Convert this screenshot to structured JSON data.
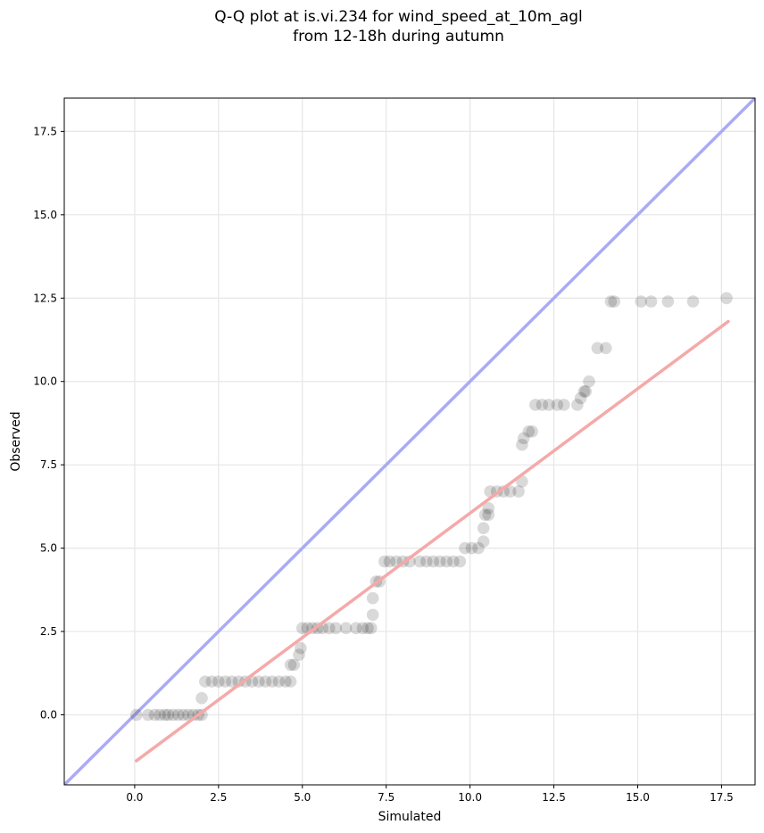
{
  "chart_data": {
    "type": "scatter",
    "title": "Q-Q plot at is.vi.234 for wind_speed_at_10m_agl",
    "subtitle": "from 12-18h during autumn",
    "xlabel": "Simulated",
    "ylabel": "Observed",
    "xlim": [
      -2.1,
      18.5
    ],
    "ylim": [
      -2.1,
      18.5
    ],
    "grid": true,
    "xticks": [
      0.0,
      2.5,
      5.0,
      7.5,
      10.0,
      12.5,
      15.0,
      17.5
    ],
    "yticks": [
      0.0,
      2.5,
      5.0,
      7.5,
      10.0,
      12.5,
      15.0,
      17.5
    ],
    "xtick_labels": [
      "0.0",
      "2.5",
      "5.0",
      "7.5",
      "10.0",
      "12.5",
      "15.0",
      "17.5"
    ],
    "ytick_labels": [
      "0.0",
      "2.5",
      "5.0",
      "7.5",
      "10.0",
      "12.5",
      "15.0",
      "17.5"
    ],
    "reference_line": {
      "x": [
        -2.1,
        18.5
      ],
      "y": [
        -2.1,
        18.5
      ],
      "color": "#aaaaf5"
    },
    "fit_line": {
      "x": [
        0.05,
        17.7
      ],
      "y": [
        -1.38,
        11.8
      ],
      "color": "#f5a9a9"
    },
    "points": [
      [
        0.05,
        0.0
      ],
      [
        0.4,
        0.0
      ],
      [
        0.6,
        0.0
      ],
      [
        0.75,
        0.0
      ],
      [
        0.9,
        0.0
      ],
      [
        1.0,
        0.0
      ],
      [
        1.15,
        0.0
      ],
      [
        1.3,
        0.0
      ],
      [
        1.45,
        0.0
      ],
      [
        1.6,
        0.0
      ],
      [
        1.75,
        0.0
      ],
      [
        1.9,
        0.0
      ],
      [
        2.0,
        0.0
      ],
      [
        2.0,
        0.5
      ],
      [
        2.1,
        1.0
      ],
      [
        2.3,
        1.0
      ],
      [
        2.5,
        1.0
      ],
      [
        2.7,
        1.0
      ],
      [
        2.9,
        1.0
      ],
      [
        3.1,
        1.0
      ],
      [
        3.3,
        1.0
      ],
      [
        3.5,
        1.0
      ],
      [
        3.7,
        1.0
      ],
      [
        3.9,
        1.0
      ],
      [
        4.1,
        1.0
      ],
      [
        4.3,
        1.0
      ],
      [
        4.5,
        1.0
      ],
      [
        4.65,
        1.0
      ],
      [
        4.65,
        1.5
      ],
      [
        4.75,
        1.5
      ],
      [
        4.9,
        1.8
      ],
      [
        4.95,
        2.0
      ],
      [
        5.0,
        2.6
      ],
      [
        5.15,
        2.6
      ],
      [
        5.3,
        2.6
      ],
      [
        5.45,
        2.6
      ],
      [
        5.6,
        2.6
      ],
      [
        5.8,
        2.6
      ],
      [
        6.0,
        2.6
      ],
      [
        6.3,
        2.6
      ],
      [
        6.6,
        2.6
      ],
      [
        6.8,
        2.6
      ],
      [
        6.95,
        2.6
      ],
      [
        7.05,
        2.6
      ],
      [
        7.1,
        3.0
      ],
      [
        7.1,
        3.5
      ],
      [
        7.2,
        4.0
      ],
      [
        7.3,
        4.0
      ],
      [
        7.45,
        4.6
      ],
      [
        7.6,
        4.6
      ],
      [
        7.8,
        4.6
      ],
      [
        8.0,
        4.6
      ],
      [
        8.2,
        4.6
      ],
      [
        8.5,
        4.6
      ],
      [
        8.7,
        4.6
      ],
      [
        8.9,
        4.6
      ],
      [
        9.1,
        4.6
      ],
      [
        9.3,
        4.6
      ],
      [
        9.5,
        4.6
      ],
      [
        9.7,
        4.6
      ],
      [
        9.85,
        5.0
      ],
      [
        10.05,
        5.0
      ],
      [
        10.25,
        5.0
      ],
      [
        10.4,
        5.2
      ],
      [
        10.4,
        5.6
      ],
      [
        10.45,
        6.0
      ],
      [
        10.55,
        6.0
      ],
      [
        10.55,
        6.2
      ],
      [
        10.6,
        6.7
      ],
      [
        10.8,
        6.7
      ],
      [
        11.0,
        6.7
      ],
      [
        11.2,
        6.7
      ],
      [
        11.45,
        6.7
      ],
      [
        11.55,
        7.0
      ],
      [
        11.55,
        8.1
      ],
      [
        11.6,
        8.3
      ],
      [
        11.75,
        8.5
      ],
      [
        11.85,
        8.5
      ],
      [
        11.95,
        9.3
      ],
      [
        12.15,
        9.3
      ],
      [
        12.35,
        9.3
      ],
      [
        12.6,
        9.3
      ],
      [
        12.8,
        9.3
      ],
      [
        13.2,
        9.3
      ],
      [
        13.3,
        9.5
      ],
      [
        13.4,
        9.7
      ],
      [
        13.45,
        9.7
      ],
      [
        13.55,
        10.0
      ],
      [
        13.8,
        11.0
      ],
      [
        14.05,
        11.0
      ],
      [
        14.2,
        12.4
      ],
      [
        14.3,
        12.4
      ],
      [
        15.1,
        12.4
      ],
      [
        15.4,
        12.4
      ],
      [
        15.9,
        12.4
      ],
      [
        16.65,
        12.4
      ],
      [
        17.65,
        12.5
      ]
    ]
  }
}
